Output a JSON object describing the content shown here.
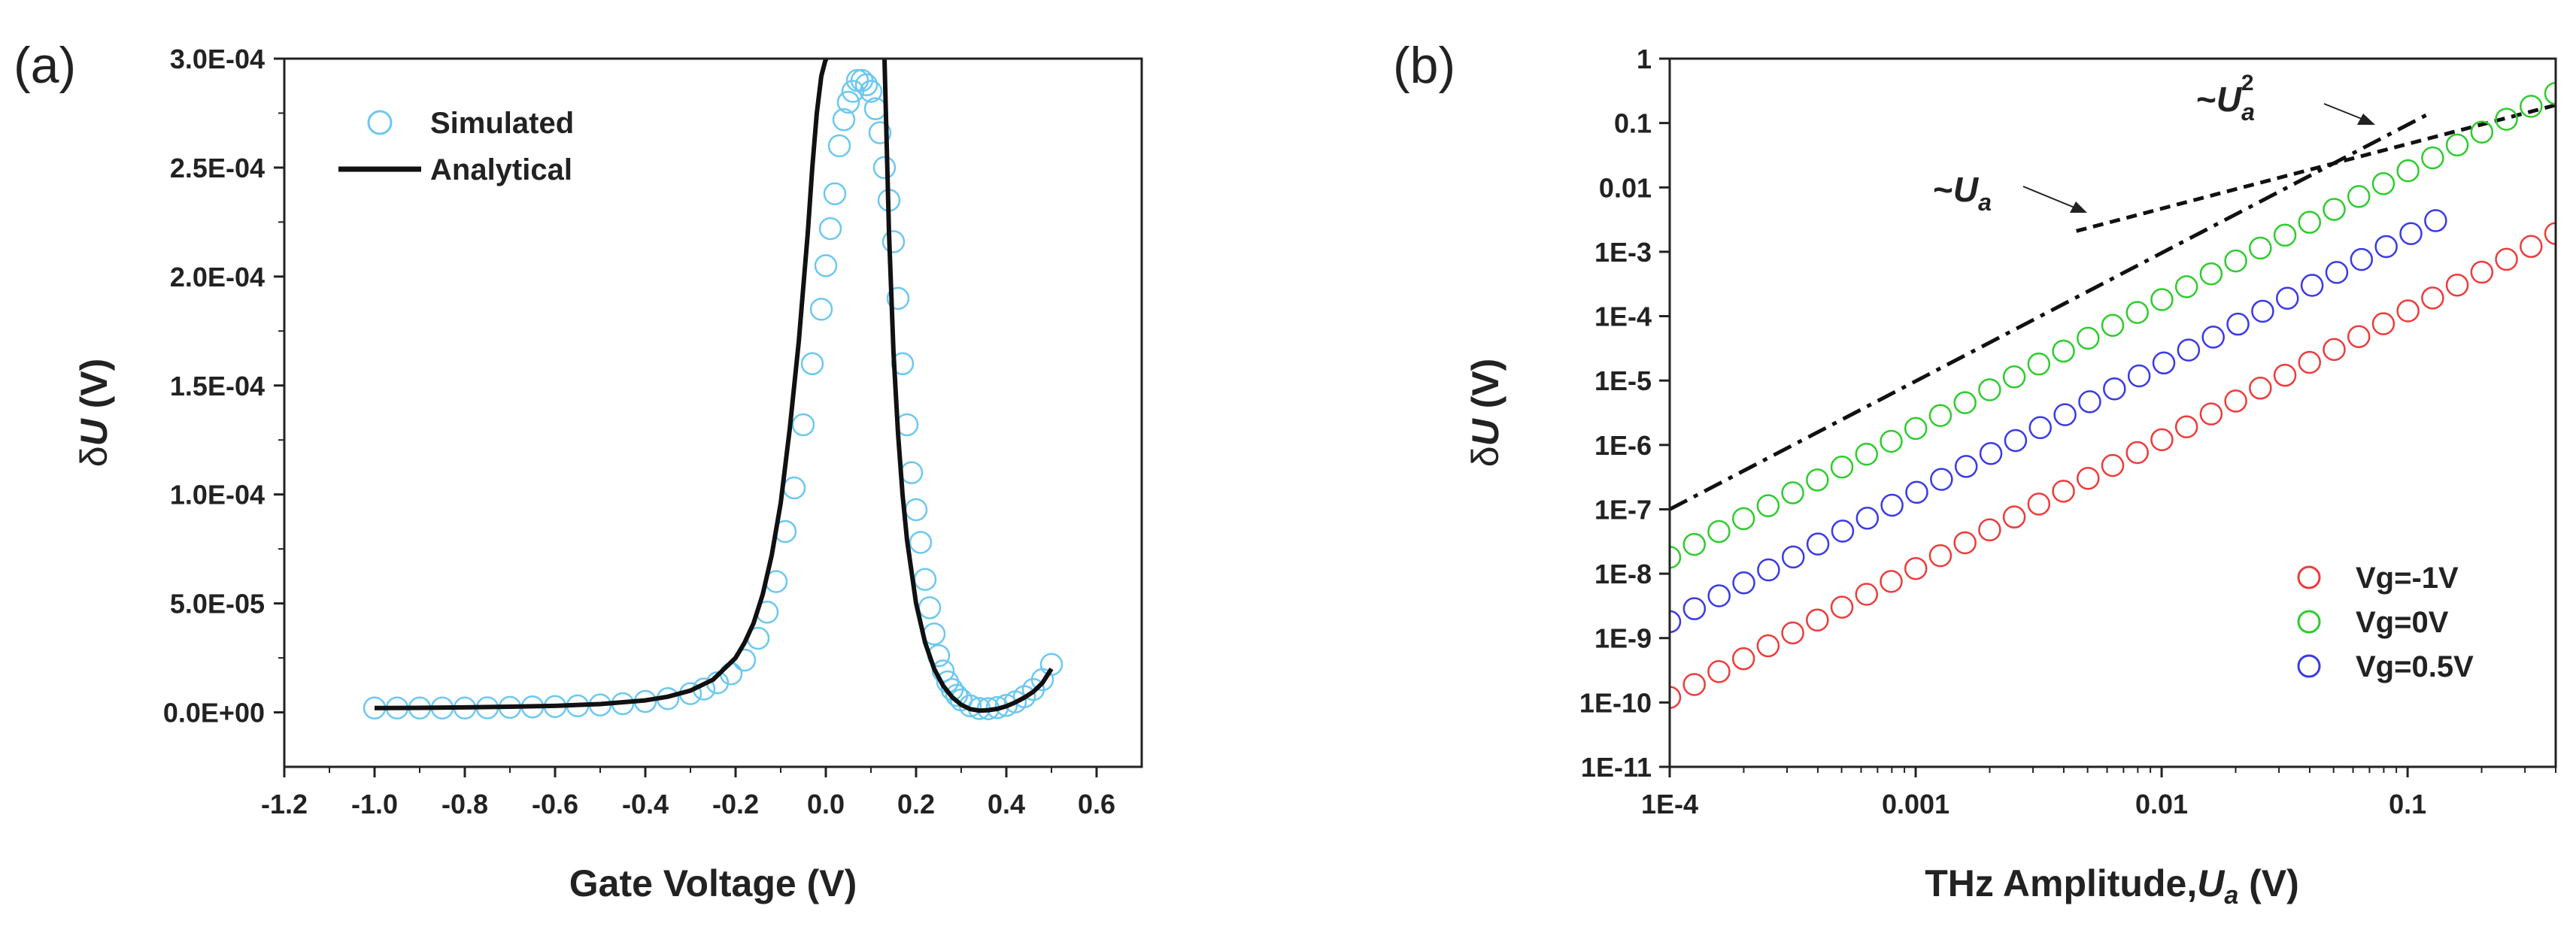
{
  "chart_data": [
    {
      "panel": "(a)",
      "type": "scatter",
      "xlabel": "Gate Voltage (V)",
      "ylabel_prefix": "δ",
      "ylabel_var": "U",
      "ylabel_suffix": " (V)",
      "xlim": [
        -1.2,
        0.7
      ],
      "ylim": [
        -2.5e-05,
        0.0003
      ],
      "xticks": [
        -1.2,
        -1.0,
        -0.8,
        -0.6,
        -0.4,
        -0.2,
        0.0,
        0.2,
        0.4,
        0.6
      ],
      "xtick_labels": [
        "-1.2",
        "-1.0",
        "-0.8",
        "-0.6",
        "-0.4",
        "-0.2",
        "0.0",
        "0.2",
        "0.4",
        "0.6"
      ],
      "yticks": [
        0,
        5e-05,
        0.0001,
        0.00015,
        0.0002,
        0.00025,
        0.0003
      ],
      "ytick_labels": [
        "0.0E+00",
        "5.0E-05",
        "1.0E-04",
        "1.5E-04",
        "2.0E-04",
        "2.5E-04",
        "3.0E-04"
      ],
      "legend": [
        {
          "name": "Simulated",
          "style": "marker",
          "color": "#6cc8f0"
        },
        {
          "name": "Analytical",
          "style": "line",
          "color": "#111111"
        }
      ],
      "series": [
        {
          "name": "Simulated",
          "color": "#6cc8f0",
          "marker": "circle",
          "x": [
            -1.0,
            -0.95,
            -0.9,
            -0.85,
            -0.8,
            -0.75,
            -0.7,
            -0.65,
            -0.6,
            -0.55,
            -0.5,
            -0.45,
            -0.4,
            -0.35,
            -0.3,
            -0.27,
            -0.24,
            -0.21,
            -0.18,
            -0.15,
            -0.13,
            -0.11,
            -0.09,
            -0.07,
            -0.05,
            -0.03,
            -0.01,
            0.0,
            0.01,
            0.02,
            0.03,
            0.04,
            0.05,
            0.06,
            0.07,
            0.08,
            0.09,
            0.1,
            0.11,
            0.12,
            0.13,
            0.14,
            0.15,
            0.16,
            0.17,
            0.18,
            0.19,
            0.2,
            0.21,
            0.22,
            0.23,
            0.24,
            0.25,
            0.26,
            0.27,
            0.28,
            0.29,
            0.3,
            0.32,
            0.34,
            0.36,
            0.38,
            0.4,
            0.42,
            0.44,
            0.46,
            0.48,
            0.5
          ],
          "y": [
            2e-06,
            2e-06,
            2e-06,
            2e-06,
            2e-06,
            2.1e-06,
            2.3e-06,
            2.5e-06,
            2.7e-06,
            3e-06,
            3.4e-06,
            4e-06,
            5e-06,
            6.3e-06,
            8.6e-06,
            1.07e-05,
            1.36e-05,
            1.77e-05,
            2.4e-05,
            3.4e-05,
            4.6e-05,
            6e-05,
            8.3e-05,
            0.000103,
            0.000132,
            0.00016,
            0.000185,
            0.000205,
            0.000222,
            0.000238,
            0.00026,
            0.000272,
            0.00028,
            0.000285,
            0.00029,
            0.00029,
            0.000288,
            0.000285,
            0.000277,
            0.000266,
            0.00025,
            0.000235,
            0.000216,
            0.00019,
            0.00016,
            0.000132,
            0.00011,
            9.3e-05,
            7.8e-05,
            6.1e-05,
            4.8e-05,
            3.6e-05,
            2.6e-05,
            1.9e-05,
            1.4e-05,
            1.05e-05,
            7.8e-06,
            5.7e-06,
            3e-06,
            1.8e-06,
            1.7e-06,
            2.2e-06,
            3.2e-06,
            4.8e-06,
            7.2e-06,
            1.05e-05,
            1.5e-05,
            2.2e-05
          ]
        },
        {
          "name": "Analytical",
          "color": "#111111",
          "style": "line",
          "x": [
            -1.0,
            -0.9,
            -0.8,
            -0.7,
            -0.6,
            -0.5,
            -0.4,
            -0.35,
            -0.3,
            -0.25,
            -0.2,
            -0.18,
            -0.16,
            -0.14,
            -0.12,
            -0.1,
            -0.08,
            -0.06,
            -0.04,
            -0.03,
            -0.02,
            -0.01,
            0.0,
            0.005
          ],
          "y": [
            2e-06,
            2.1e-06,
            2.3e-06,
            2.6e-06,
            3e-06,
            3.8e-06,
            5.5e-06,
            7.2e-06,
            1e-05,
            1.5e-05,
            2.5e-05,
            3.2e-05,
            4.1e-05,
            5.4e-05,
            7.2e-05,
            9.6e-05,
            0.00013,
            0.00017,
            0.00022,
            0.00025,
            0.000275,
            0.000292,
            0.0003,
            0.0003
          ]
        },
        {
          "name": "Analytical (right branch)",
          "color": "#111111",
          "style": "line",
          "x": [
            0.13,
            0.135,
            0.14,
            0.15,
            0.16,
            0.17,
            0.18,
            0.2,
            0.22,
            0.24,
            0.26,
            0.28,
            0.3,
            0.32,
            0.34,
            0.36,
            0.38,
            0.4,
            0.42,
            0.44,
            0.46,
            0.48,
            0.5
          ],
          "y": [
            0.0003,
            0.00026,
            0.00022,
            0.000165,
            0.000128,
            0.0001,
            7.9e-05,
            5e-05,
            3.2e-05,
            2e-05,
            1.22e-05,
            7e-06,
            3.5e-06,
            1.5e-06,
            8e-07,
            1e-06,
            1.6e-06,
            2.8e-06,
            4.6e-06,
            6.8e-06,
            9.5e-06,
            1.35e-05,
            2e-05
          ]
        }
      ]
    },
    {
      "panel": "(b)",
      "type": "scatter",
      "xscale": "log",
      "yscale": "log",
      "xlabel_prefix": "THz Amplitude,",
      "xlabel_var": "U",
      "xlabel_sub": "a",
      "xlabel_suffix": " (V)",
      "ylabel_prefix": "δ",
      "ylabel_var": "U",
      "ylabel_suffix": " (V)",
      "xlim": [
        0.0001,
        0.4
      ],
      "ylim": [
        1e-11,
        1
      ],
      "xticks": [
        0.0001,
        0.001,
        0.01,
        0.1
      ],
      "xtick_labels": [
        "1E-4",
        "0.001",
        "0.01",
        "0.1"
      ],
      "yticks": [
        1e-11,
        1e-10,
        1e-09,
        1e-08,
        1e-07,
        1e-06,
        1e-05,
        0.0001,
        0.001,
        0.01,
        0.1,
        1
      ],
      "ytick_labels": [
        "1E-11",
        "1E-10",
        "1E-9",
        "1E-8",
        "1E-7",
        "1E-6",
        "1E-5",
        "1E-4",
        "1E-3",
        "0.01",
        "0.1",
        "1"
      ],
      "annotations": [
        {
          "id": "linear",
          "text_prefix": "~",
          "var": "U",
          "sub": "a",
          "sup": ""
        },
        {
          "id": "quadratic",
          "text_prefix": "~",
          "var": "U",
          "sub": "a",
          "sup": "2"
        }
      ],
      "legend": [
        {
          "name": "Vg=-1V",
          "color": "#ee3b3b"
        },
        {
          "name": "Vg=0V",
          "color": "#2ecc2e"
        },
        {
          "name": "Vg=0.5V",
          "color": "#3a3ae6"
        }
      ],
      "series": [
        {
          "name": "Vg=-1V",
          "color": "#ee3b3b",
          "marker": "circle",
          "x_start": 0.0001,
          "x_end": 0.4,
          "n_points": 37,
          "y_start": 1.2e-10,
          "slope": 2
        },
        {
          "name": "Vg=0V",
          "color": "#2ecc2e",
          "marker": "circle",
          "x_start": 0.0001,
          "x_end": 0.4,
          "n_points": 37,
          "y_start": 1.8e-08,
          "slope": 2
        },
        {
          "name": "Vg=0.5V",
          "color": "#3a3ae6",
          "marker": "circle",
          "x_start": 0.0001,
          "x_end": 0.13,
          "n_points": 32,
          "y_start": 1.8e-09,
          "slope": 2
        }
      ],
      "reference_lines": [
        {
          "name": "~Ua^2 reference",
          "style": "dash-dot",
          "x": [
            0.0001,
            0.12
          ],
          "y": [
            1e-07,
            0.135
          ]
        },
        {
          "name": "~Ua reference",
          "style": "dashed",
          "x": [
            0.0045,
            0.4
          ],
          "y": [
            0.0021,
            0.19
          ]
        }
      ]
    }
  ]
}
